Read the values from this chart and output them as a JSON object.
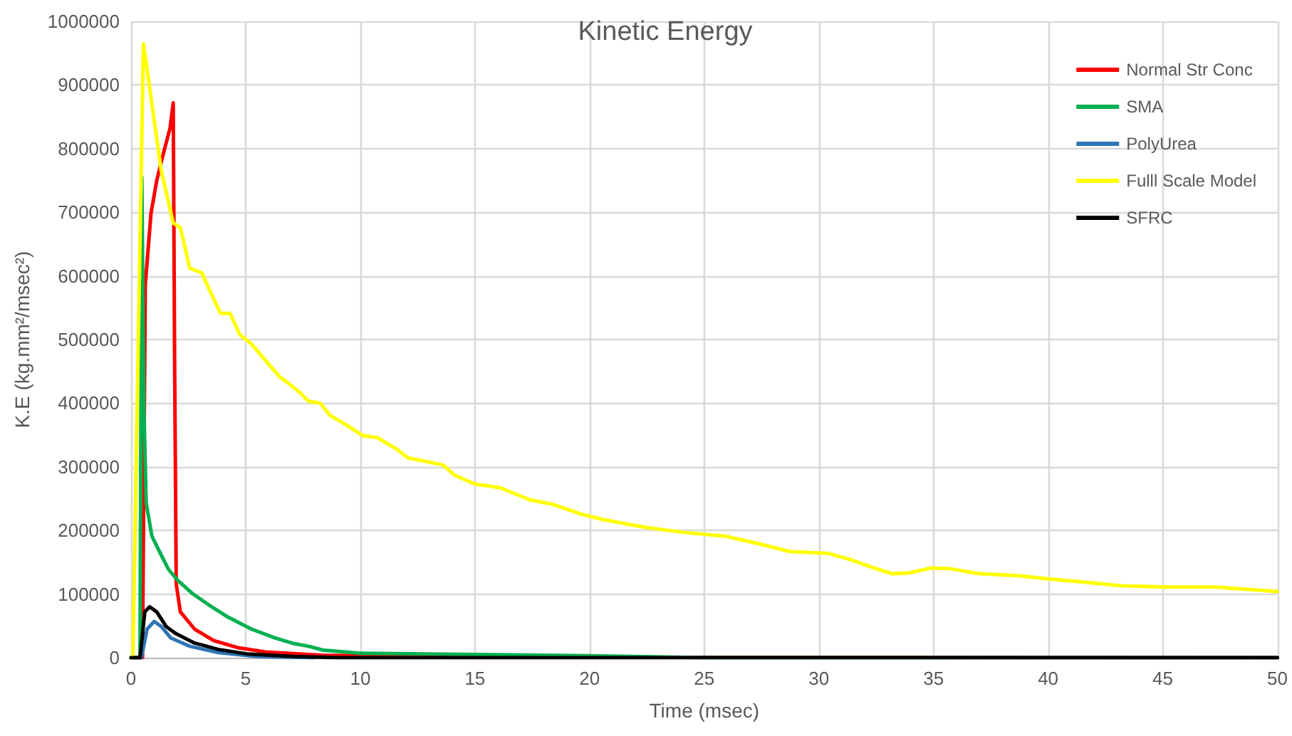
{
  "chart_data": {
    "type": "line",
    "title": "Kinetic Energy",
    "xlabel": "Time (msec)",
    "ylabel": "K.E (kg.mm²/msec²)",
    "xlim": [
      0,
      50
    ],
    "xticks": [
      0,
      5,
      10,
      15,
      20,
      25,
      30,
      35,
      40,
      45,
      50
    ],
    "ylim": [
      0,
      1000000
    ],
    "yticks": [
      0,
      100000,
      200000,
      300000,
      400000,
      500000,
      600000,
      700000,
      800000,
      900000,
      1000000
    ],
    "grid": true,
    "legend": "top right",
    "marker": "none",
    "line_style": "solid",
    "series": [
      {
        "name": "Normal Str Conc",
        "color": "#ff0000",
        "x": [
          0,
          0.5,
          0.62,
          0.87,
          1.12,
          1.43,
          1.7,
          1.84,
          1.9,
          1.97,
          2.15,
          2.77,
          3.6,
          4.63,
          5.87,
          8.3,
          15,
          50
        ],
        "values": [
          0,
          0,
          586000,
          698000,
          750000,
          795000,
          832000,
          872000,
          467000,
          116000,
          72000,
          45000,
          27000,
          16000,
          9000,
          4000,
          1000,
          0
        ]
      },
      {
        "name": "SMA",
        "color": "#00b050",
        "x": [
          0,
          0.39,
          0.47,
          0.56,
          0.66,
          0.91,
          1.32,
          1.63,
          2.05,
          2.67,
          3.39,
          4.22,
          5.25,
          6.29,
          7.12,
          7.74,
          8.36,
          10,
          15,
          20,
          25,
          50
        ],
        "values": [
          0,
          0,
          755000,
          392000,
          243000,
          191000,
          161000,
          139000,
          121000,
          101000,
          83000,
          64000,
          45000,
          31000,
          22000,
          18000,
          12000,
          7000,
          5000,
          3000,
          0,
          0
        ]
      },
      {
        "name": "PolyUrea",
        "color": "#2e75b6",
        "x": [
          0,
          0.45,
          0.7,
          1.01,
          1.32,
          1.73,
          2.56,
          3.81,
          5.46,
          8
        ],
        "values": [
          0,
          0,
          45000,
          57000,
          49000,
          31000,
          18000,
          8000,
          2000,
          0
        ]
      },
      {
        "name": "Fulll Scale Model",
        "color": "#ffff00",
        "x": [
          0,
          0.08,
          0.54,
          0.91,
          1.32,
          1.84,
          2.15,
          2.56,
          3.08,
          3.6,
          3.91,
          4.32,
          4.74,
          5.25,
          5.87,
          6.49,
          6.8,
          7.32,
          7.74,
          8.25,
          8.67,
          9.39,
          10.1,
          10.73,
          11.58,
          12.08,
          13.6,
          14.1,
          15,
          16.1,
          17.4,
          18.4,
          19.6,
          20.6,
          22.4,
          24.1,
          25.9,
          27.4,
          28.7,
          30.4,
          31.4,
          32.4,
          33.2,
          33.9,
          34.9,
          35.7,
          37,
          38.7,
          40,
          41.2,
          43.2,
          45.2,
          47.3,
          48.8,
          50
        ],
        "values": [
          0,
          0,
          965000,
          870000,
          765000,
          683000,
          676000,
          612000,
          605000,
          564000,
          541000,
          541000,
          508000,
          493000,
          467000,
          441000,
          433000,
          418000,
          403000,
          400000,
          381000,
          366000,
          349000,
          346000,
          328000,
          314000,
          303000,
          287000,
          273000,
          267000,
          248000,
          241000,
          226000,
          217000,
          205000,
          197000,
          191000,
          179000,
          167000,
          164000,
          154000,
          141000,
          132000,
          133000,
          141000,
          140000,
          132000,
          129000,
          124000,
          120000,
          113000,
          111000,
          111000,
          107000,
          104000
        ]
      },
      {
        "name": "SFRC",
        "color": "#000000",
        "x": [
          0,
          0.39,
          0.6,
          0.81,
          1.12,
          1.53,
          1.95,
          2.77,
          3.81,
          5.05,
          7.1,
          9,
          50
        ],
        "values": [
          0,
          0,
          72000,
          80000,
          72000,
          49000,
          38000,
          23000,
          13000,
          6000,
          2000,
          0,
          0
        ]
      }
    ]
  }
}
